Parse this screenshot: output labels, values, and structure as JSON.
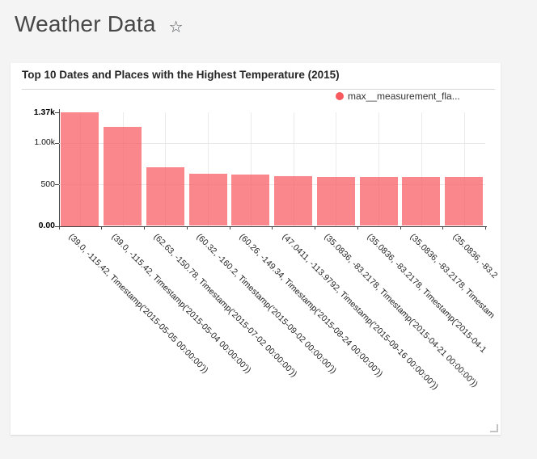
{
  "header": {
    "title": "Weather Data",
    "star_icon": "☆"
  },
  "card": {
    "title": "Top 10 Dates and Places with the Highest Temperature (2015)",
    "legend": {
      "marker_color": "#f7595f",
      "label": "max__measurement_fla..."
    }
  },
  "chart_data": {
    "type": "bar",
    "title": "Top 10 Dates and Places with the Highest Temperature (2015)",
    "legend": [
      "max__measurement_fla..."
    ],
    "legend_position": "top-right",
    "xlabel": "",
    "ylabel": "",
    "ylim": [
      0,
      1370
    ],
    "grid": true,
    "bar_color": "#f7595f",
    "bar_fill": "rgba(247,89,95,0.72)",
    "y_ticks": [
      {
        "value": 0,
        "label": "0.00",
        "bold": true
      },
      {
        "value": 500,
        "label": "500",
        "bold": false
      },
      {
        "value": 1000,
        "label": "1.00k",
        "bold": false
      },
      {
        "value": 1370,
        "label": "1.37k",
        "bold": true
      }
    ],
    "categories": [
      "(39.0, -115.42, Timestamp('2015-05-05 00:00:00'))",
      "(39.0, -115.42, Timestamp('2015-05-04 00:00:00'))",
      "(62.63, -150.78, Timestamp('2015-07-02 00:00:00'))",
      "(60.32, -160.2, Timestamp('2015-09-02 00:00:00'))",
      "(60.26, -149.34, Timestamp('2015-08-24 00:00:00'))",
      "(47.0411, -113.9792, Timestamp('2015-09-16 00:00:00'))",
      "(35.0836, -83.2178, Timestamp('2015-04-21 00:00:00'))",
      "(35.0836, -83.2178, Timestamp('2015-04-1",
      "(35.0836, -83.2178, Timestam",
      "(35.0836, -83.2"
    ],
    "values": [
      1370,
      1194,
      707,
      630,
      624,
      597,
      594,
      593,
      592,
      591
    ]
  }
}
